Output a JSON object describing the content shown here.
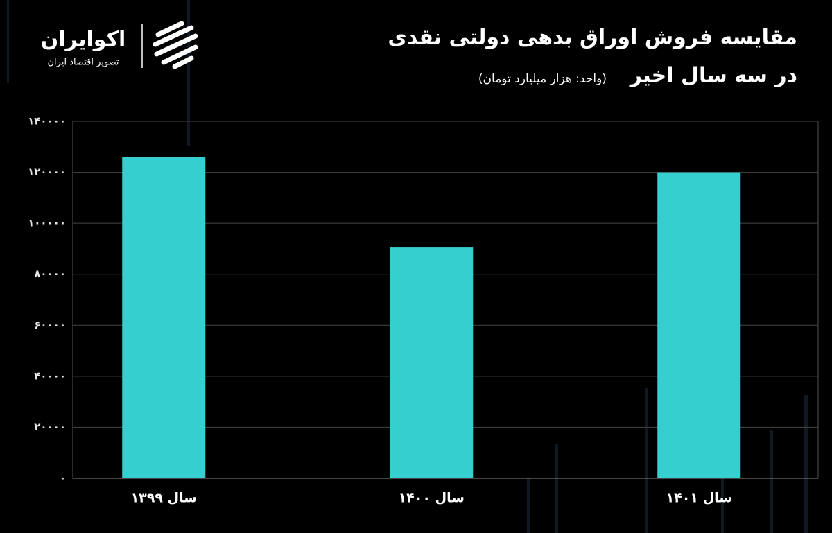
{
  "logo": {
    "name": "اکوایران",
    "tagline": "تصویر اقتصاد ایران"
  },
  "chart_data": {
    "type": "bar",
    "title": "مقایسه فروش اوراق بدهی دولتی نقدی",
    "subtitle": "در سه سال اخیر",
    "unit_note": "(واحد: هزار میلیارد تومان)",
    "categories": [
      "سال ۱۳۹۹",
      "سال ۱۴۰۰",
      "سال ۱۴۰۱"
    ],
    "values": [
      126000,
      90500,
      120000
    ],
    "color": "#36cfd0",
    "ylim": [
      0,
      140000
    ],
    "yticks": [
      {
        "value": 0,
        "label": "۰"
      },
      {
        "value": 20000,
        "label": "۲۰۰۰۰"
      },
      {
        "value": 40000,
        "label": "۴۰۰۰۰"
      },
      {
        "value": 60000,
        "label": "۶۰۰۰۰"
      },
      {
        "value": 80000,
        "label": "۸۰۰۰۰"
      },
      {
        "value": 100000,
        "label": "۱۰۰۰۰۰"
      },
      {
        "value": 120000,
        "label": "۱۲۰۰۰۰"
      },
      {
        "value": 140000,
        "label": "۱۴۰۰۰۰"
      }
    ],
    "grid": true
  }
}
